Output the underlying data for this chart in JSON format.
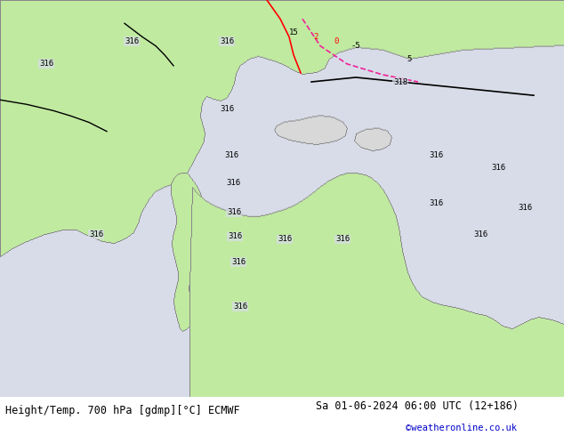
{
  "title_left": "Height/Temp. 700 hPa [gdmp][°C] ECMWF",
  "title_right": "Sa 01-06-2024 06:00 UTC (12+186)",
  "credit": "©weatheronline.co.uk",
  "fig_width": 6.34,
  "fig_height": 4.9,
  "dpi": 100,
  "font_size_title": 8.5,
  "font_size_credit": 7.5,
  "map_bg_color": "#e8eaf0",
  "ocean_color": "#d8dce8",
  "land_green_color": "#c0eaa0",
  "land_gray_color": "#d8d8d8",
  "contour_black": "#000000",
  "contour_red": "#ee0000",
  "contour_pink": "#ee2299",
  "text_credit_color": "#0000cc"
}
